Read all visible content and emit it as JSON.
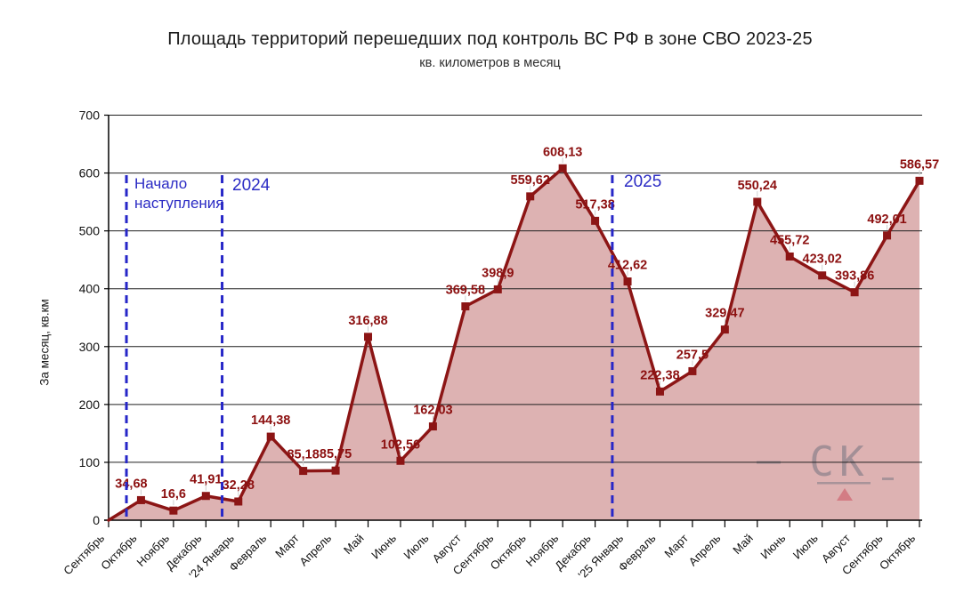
{
  "chart_data": {
    "type": "area",
    "title": "Площадь территорий перешедших под контроль ВС РФ в зоне СВО 2023-25",
    "subtitle": "кв. километров в месяц",
    "xlabel": "",
    "ylabel": "За месяц, кв.км",
    "ylim": [
      0,
      700
    ],
    "yticks": [
      0,
      100,
      200,
      300,
      400,
      500,
      600,
      700
    ],
    "grid": "horizontal",
    "legend": "none",
    "categories": [
      "Сентябрь",
      "Октябрь",
      "Ноябрь",
      "Декабрь",
      "'24 Январь",
      "Февраль",
      "Март",
      "Апрель",
      "Май",
      "Июнь",
      "Июль",
      "Август",
      "Сентябрь",
      "Октябрь",
      "Ноябрь",
      "Декабрь",
      "'25 Январь",
      "Февраль",
      "Март",
      "Апрель",
      "Май",
      "Июнь",
      "Июль",
      "Август",
      "Сентябрь",
      "Октябрь"
    ],
    "values": [
      0,
      34.68,
      16.6,
      41.91,
      32.28,
      144.38,
      85.18,
      85.75,
      316.88,
      102.56,
      162.03,
      369.58,
      398.9,
      559.62,
      608.13,
      517.38,
      412.62,
      222.38,
      257.5,
      329.47,
      550.24,
      455.72,
      423.02,
      393.86,
      492.01,
      586.57
    ],
    "point_labels": [
      "",
      "34,68",
      "16,6",
      "41,91",
      "32,28",
      "144,38",
      "85,18",
      "85,75",
      "316,88",
      "102,56",
      "162,03",
      "369,58",
      "398,9",
      "559,62",
      "608,13",
      "517,38",
      "412,62",
      "222,38",
      "257,5",
      "329,47",
      "550,24",
      "455,72",
      "423,02",
      "393,86",
      "492,01",
      "586,57"
    ],
    "vlines": [
      {
        "label": "Начало наступления",
        "x_index": 0.55
      },
      {
        "label": "2024",
        "x_index": 3.5
      },
      {
        "label": "2025",
        "x_index": 15.53
      }
    ],
    "colors": {
      "line": "#8C1515",
      "marker": "#8C1515",
      "fill": "rgba(156,30,30,0.34)",
      "value_label": "#8C1010",
      "vline": "#2727C8",
      "annotation_text": "#2B2BC4",
      "grid": "#1f1f1f",
      "axis": "#000000"
    },
    "watermark": {
      "text": "СК"
    }
  }
}
